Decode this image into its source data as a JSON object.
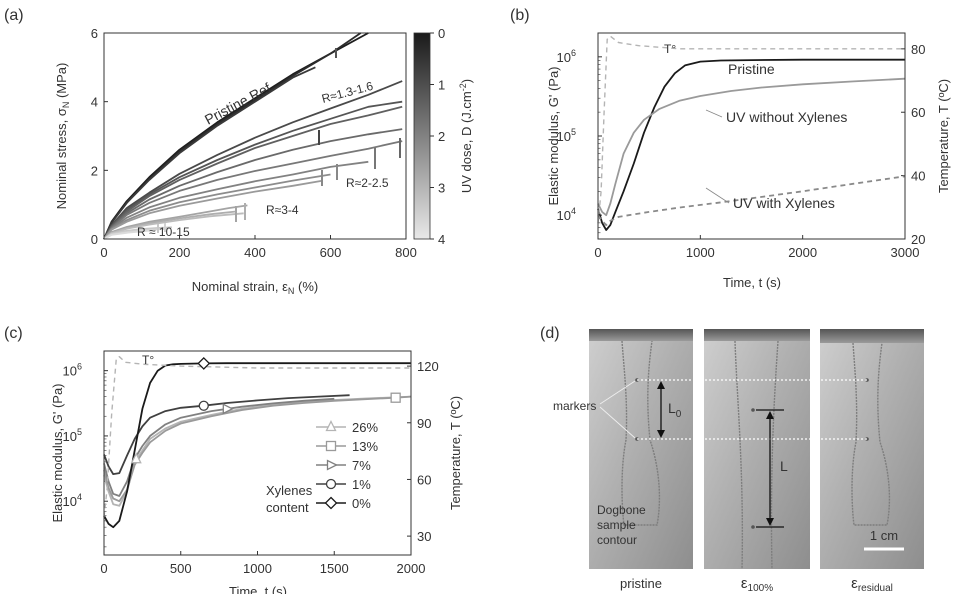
{
  "panels": {
    "a": {
      "letter": "(a)"
    },
    "b": {
      "letter": "(b)"
    },
    "c": {
      "letter": "(c)"
    },
    "d": {
      "letter": "(d)"
    }
  },
  "chart_data": [
    {
      "id": "a",
      "type": "line",
      "xlabel": "Nominal strain, ε",
      "xlabel_sub": "N",
      "xlabel_unit": " (%)",
      "ylabel": "Nominal stress, σ",
      "ylabel_sub": "N",
      "ylabel_unit": " (MPa)",
      "xlim": [
        0,
        800
      ],
      "ylim": [
        0,
        6
      ],
      "xticks": [
        0,
        200,
        400,
        600,
        800
      ],
      "yticks": [
        0,
        2,
        4,
        6
      ],
      "colorbar": {
        "label": "UV dose, D (J.cm",
        "label_sup": "-2",
        "label_end": ")",
        "range": [
          0,
          4
        ],
        "ticks": [
          0,
          1,
          2,
          3,
          4
        ],
        "colors": [
          "#1a1a1a",
          "#e8e8e8"
        ]
      },
      "annotations": [
        "Pristine Ref",
        "R≈1.3-1.6",
        "R≈2-2.5",
        "R≈3-4",
        "R ≈ 10-15"
      ],
      "series": [
        {
          "color": "#1e1e1e",
          "x": [
            0,
            20,
            60,
            120,
            200,
            300,
            400,
            500,
            600,
            700
          ],
          "y": [
            0,
            0.5,
            1.1,
            1.8,
            2.6,
            3.4,
            4.1,
            4.8,
            5.4,
            6.0
          ]
        },
        {
          "color": "#2c2c2c",
          "x": [
            0,
            20,
            60,
            120,
            200,
            300,
            400,
            500,
            600,
            680
          ],
          "y": [
            0,
            0.48,
            1.05,
            1.75,
            2.55,
            3.35,
            4.05,
            4.75,
            5.4,
            6.0
          ]
        },
        {
          "color": "#3a3a3a",
          "x": [
            0,
            20,
            60,
            120,
            200,
            300,
            400,
            500,
            560
          ],
          "y": [
            0,
            0.47,
            1.05,
            1.72,
            2.5,
            3.3,
            4.0,
            4.7,
            5.0
          ]
        },
        {
          "color": "#4a4a4a",
          "x": [
            0,
            20,
            60,
            120,
            200,
            300,
            400,
            500,
            600,
            700,
            790
          ],
          "y": [
            0,
            0.4,
            0.9,
            1.35,
            1.9,
            2.45,
            2.95,
            3.4,
            3.8,
            4.2,
            4.6
          ]
        },
        {
          "color": "#555555",
          "x": [
            0,
            20,
            60,
            120,
            200,
            300,
            400,
            500,
            600,
            700,
            790
          ],
          "y": [
            0,
            0.38,
            0.85,
            1.3,
            1.8,
            2.3,
            2.75,
            3.15,
            3.5,
            3.85,
            4.0
          ]
        },
        {
          "color": "#606060",
          "x": [
            0,
            20,
            60,
            120,
            200,
            300,
            400,
            500,
            600,
            700,
            790
          ],
          "y": [
            0,
            0.36,
            0.8,
            1.25,
            1.72,
            2.2,
            2.65,
            3.0,
            3.35,
            3.6,
            3.85
          ]
        },
        {
          "color": "#6a6a6a",
          "x": [
            0,
            20,
            60,
            120,
            200,
            300,
            400,
            500,
            600,
            700,
            790
          ],
          "y": [
            0,
            0.34,
            0.75,
            1.15,
            1.55,
            1.95,
            2.3,
            2.6,
            2.85,
            3.05,
            3.2
          ]
        },
        {
          "color": "#787878",
          "x": [
            0,
            20,
            60,
            120,
            200,
            300,
            400,
            500,
            600,
            700,
            790
          ],
          "y": [
            0,
            0.32,
            0.7,
            1.05,
            1.4,
            1.72,
            1.98,
            2.2,
            2.42,
            2.63,
            2.85
          ]
        },
        {
          "color": "#828282",
          "x": [
            0,
            20,
            60,
            120,
            200,
            300,
            400,
            500,
            600,
            700
          ],
          "y": [
            0,
            0.3,
            0.62,
            0.92,
            1.2,
            1.45,
            1.68,
            1.88,
            2.1,
            2.25
          ]
        },
        {
          "color": "#8c8c8c",
          "x": [
            0,
            20,
            60,
            120,
            200,
            300,
            400,
            500,
            600
          ],
          "y": [
            0,
            0.28,
            0.55,
            0.82,
            1.07,
            1.3,
            1.5,
            1.7,
            1.88
          ]
        },
        {
          "color": "#9a9a9a",
          "x": [
            0,
            20,
            60,
            120,
            200,
            300,
            400,
            500,
            580
          ],
          "y": [
            0,
            0.27,
            0.5,
            0.75,
            0.97,
            1.18,
            1.38,
            1.55,
            1.7
          ]
        },
        {
          "color": "#a4a4a4",
          "x": [
            0,
            20,
            60,
            120,
            200,
            280,
            330,
            380
          ],
          "y": [
            0,
            0.2,
            0.35,
            0.5,
            0.65,
            0.8,
            0.9,
            0.98
          ]
        },
        {
          "color": "#aeaeae",
          "x": [
            0,
            20,
            60,
            120,
            200,
            280,
            350
          ],
          "y": [
            0,
            0.18,
            0.32,
            0.46,
            0.6,
            0.72,
            0.8
          ]
        },
        {
          "color": "#bcbcbc",
          "x": [
            0,
            20,
            60,
            120,
            200,
            280,
            370
          ],
          "y": [
            0,
            0.17,
            0.3,
            0.42,
            0.55,
            0.66,
            0.75
          ]
        },
        {
          "color": "#c8c8c8",
          "x": [
            0,
            20,
            60,
            100,
            140,
            180
          ],
          "y": [
            0,
            0.15,
            0.24,
            0.29,
            0.32,
            0.34
          ]
        },
        {
          "color": "#d2d2d2",
          "x": [
            0,
            20,
            60,
            100,
            140,
            170
          ],
          "y": [
            0,
            0.13,
            0.2,
            0.25,
            0.28,
            0.3
          ]
        },
        {
          "color": "#dcdcdc",
          "x": [
            0,
            20,
            60,
            100,
            130
          ],
          "y": [
            0,
            0.12,
            0.18,
            0.22,
            0.25
          ]
        }
      ]
    },
    {
      "id": "b",
      "type": "line",
      "xlabel": "Time, t (s)",
      "ylabel": "Elastic modulus, G' (Pa)",
      "y2label": "Temperature, T (ºC)",
      "xlim": [
        0,
        3000
      ],
      "ylim": [
        5000,
        2000000
      ],
      "yscale": "log",
      "y2lim": [
        20,
        85
      ],
      "xticks": [
        0,
        1000,
        2000,
        3000
      ],
      "yticks": [
        10000,
        100000,
        1000000
      ],
      "ytick_labels": [
        {
          "base": "10",
          "exp": "4"
        },
        {
          "base": "10",
          "exp": "5"
        },
        {
          "base": "10",
          "exp": "6"
        }
      ],
      "y2ticks": [
        20,
        40,
        60,
        80
      ],
      "labels": {
        "pristine": "Pristine",
        "uv_without": "UV without Xylenes",
        "uv_with": "UV with Xylenes",
        "temp": "T°"
      },
      "series": [
        {
          "name": "Pristine",
          "color": "#1a1a1a",
          "x": [
            0,
            40,
            80,
            120,
            170,
            250,
            350,
            450,
            550,
            650,
            750,
            850,
            1000,
            1200,
            1500,
            2000,
            2500,
            3000
          ],
          "y": [
            12000,
            8000,
            6500,
            7500,
            11000,
            20000,
            45000,
            110000,
            230000,
            420000,
            620000,
            780000,
            870000,
            900000,
            910000,
            920000,
            920000,
            920000
          ]
        },
        {
          "name": "UV without Xylenes",
          "color": "#9a9a9a",
          "x": [
            0,
            40,
            80,
            120,
            170,
            250,
            350,
            450,
            600,
            800,
            1000,
            1300,
            1600,
            2000,
            2500,
            3000
          ],
          "y": [
            14000,
            11000,
            10000,
            14000,
            25000,
            60000,
            110000,
            160000,
            220000,
            280000,
            320000,
            370000,
            410000,
            450000,
            490000,
            530000
          ]
        },
        {
          "name": "UV with Xylenes",
          "color": "#8a8a8a",
          "dashed": true,
          "x": [
            0,
            40,
            80,
            120,
            200,
            300,
            500,
            800,
            1200,
            1600,
            2000,
            2500,
            3000
          ],
          "y": [
            10000,
            8500,
            7500,
            8500,
            9500,
            10000,
            11000,
            12500,
            14500,
            17000,
            20000,
            25000,
            31000
          ]
        },
        {
          "name": "T°",
          "color": "#b4b4b4",
          "dashed": true,
          "axis": "y2",
          "x": [
            0,
            30,
            60,
            90,
            120,
            200,
            400,
            800,
            1200,
            2000,
            3000
          ],
          "y": [
            25,
            35,
            60,
            83,
            84,
            82,
            81,
            80,
            80,
            80,
            80
          ]
        }
      ]
    },
    {
      "id": "c",
      "type": "line",
      "xlabel": "Time, t (s)",
      "ylabel": "Elastic modulus, G' (Pa)",
      "y2label": "Temperature, T (ºC)",
      "xlim": [
        0,
        2000
      ],
      "ylim": [
        1500,
        2000000
      ],
      "yscale": "log",
      "y2lim": [
        20,
        128
      ],
      "xticks": [
        0,
        500,
        1000,
        1500,
        2000
      ],
      "yticks": [
        10000,
        100000,
        1000000
      ],
      "ytick_labels": [
        {
          "base": "10",
          "exp": "4"
        },
        {
          "base": "10",
          "exp": "5"
        },
        {
          "base": "10",
          "exp": "6"
        }
      ],
      "y2ticks": [
        30,
        60,
        90,
        120
      ],
      "legend_title": [
        "Xylenes",
        "content"
      ],
      "temp_label": "T°",
      "series": [
        {
          "name": "26%",
          "marker": "triangle-up",
          "color": "#b4b4b4",
          "x": [
            0,
            30,
            60,
            100,
            150,
            200,
            250,
            300,
            400,
            500,
            700,
            900,
            1100,
            1300,
            1500,
            1700,
            1900,
            2000
          ],
          "y": [
            25000,
            14000,
            9000,
            8500,
            14000,
            40000,
            60000,
            90000,
            130000,
            165000,
            210000,
            260000,
            300000,
            330000,
            355000,
            375000,
            390000,
            400000
          ],
          "marker_x": [
            210
          ]
        },
        {
          "name": "13%",
          "marker": "square",
          "color": "#9a9a9a",
          "x": [
            0,
            30,
            60,
            100,
            150,
            200,
            250,
            300,
            400,
            500,
            700,
            900,
            1100,
            1300,
            1500,
            1700,
            1900,
            2000
          ],
          "y": [
            30000,
            16000,
            11000,
            10000,
            15000,
            36000,
            55000,
            80000,
            120000,
            155000,
            200000,
            250000,
            290000,
            320000,
            345000,
            365000,
            385000,
            400000
          ],
          "marker_x": [
            1900
          ]
        },
        {
          "name": "7%",
          "marker": "triangle-right",
          "color": "#808080",
          "x": [
            0,
            30,
            60,
            100,
            150,
            200,
            250,
            300,
            400,
            500,
            700,
            900,
            1100,
            1300,
            1500
          ],
          "y": [
            38000,
            20000,
            13000,
            12000,
            20000,
            45000,
            70000,
            100000,
            150000,
            190000,
            240000,
            280000,
            315000,
            345000,
            370000
          ],
          "marker_x": [
            800
          ]
        },
        {
          "name": "1%",
          "marker": "circle",
          "color": "#404040",
          "x": [
            0,
            30,
            60,
            100,
            150,
            200,
            250,
            300,
            400,
            500,
            650,
            800,
            1000,
            1200,
            1400,
            1600
          ],
          "y": [
            52000,
            34000,
            26000,
            27000,
            50000,
            90000,
            140000,
            190000,
            240000,
            270000,
            290000,
            320000,
            350000,
            380000,
            400000,
            420000
          ],
          "marker_x": [
            650
          ]
        },
        {
          "name": "0%",
          "marker": "diamond",
          "color": "#1a1a1a",
          "x": [
            0,
            30,
            60,
            100,
            150,
            200,
            250,
            300,
            350,
            400,
            450,
            500,
            650,
            800,
            1000,
            1300,
            1600,
            2000
          ],
          "y": [
            6000,
            4500,
            4000,
            5000,
            14000,
            60000,
            260000,
            650000,
            1000000,
            1200000,
            1250000,
            1270000,
            1290000,
            1300000,
            1300000,
            1300000,
            1300000,
            1300000
          ],
          "marker_x": [
            650
          ]
        },
        {
          "name": "T°",
          "color": "#b4b4b4",
          "dashed": true,
          "axis": "y2",
          "x": [
            0,
            20,
            50,
            80,
            100,
            140,
            250,
            500,
            1000,
            1500,
            2000
          ],
          "y": [
            40,
            55,
            95,
            124,
            125,
            122,
            121,
            120,
            119,
            119,
            119
          ]
        }
      ]
    }
  ],
  "photo_panel": {
    "markers_label": "markers",
    "L0_label": "L",
    "L0_sub": "0",
    "L_label": "L",
    "contour_label": [
      "Dogbone",
      "sample",
      "contour"
    ],
    "scale_label": "1 cm",
    "captions": [
      {
        "base": "pristine",
        "sub": ""
      },
      {
        "base": "ε",
        "sub": "100%"
      },
      {
        "base": "ε",
        "sub": "residual"
      }
    ]
  }
}
